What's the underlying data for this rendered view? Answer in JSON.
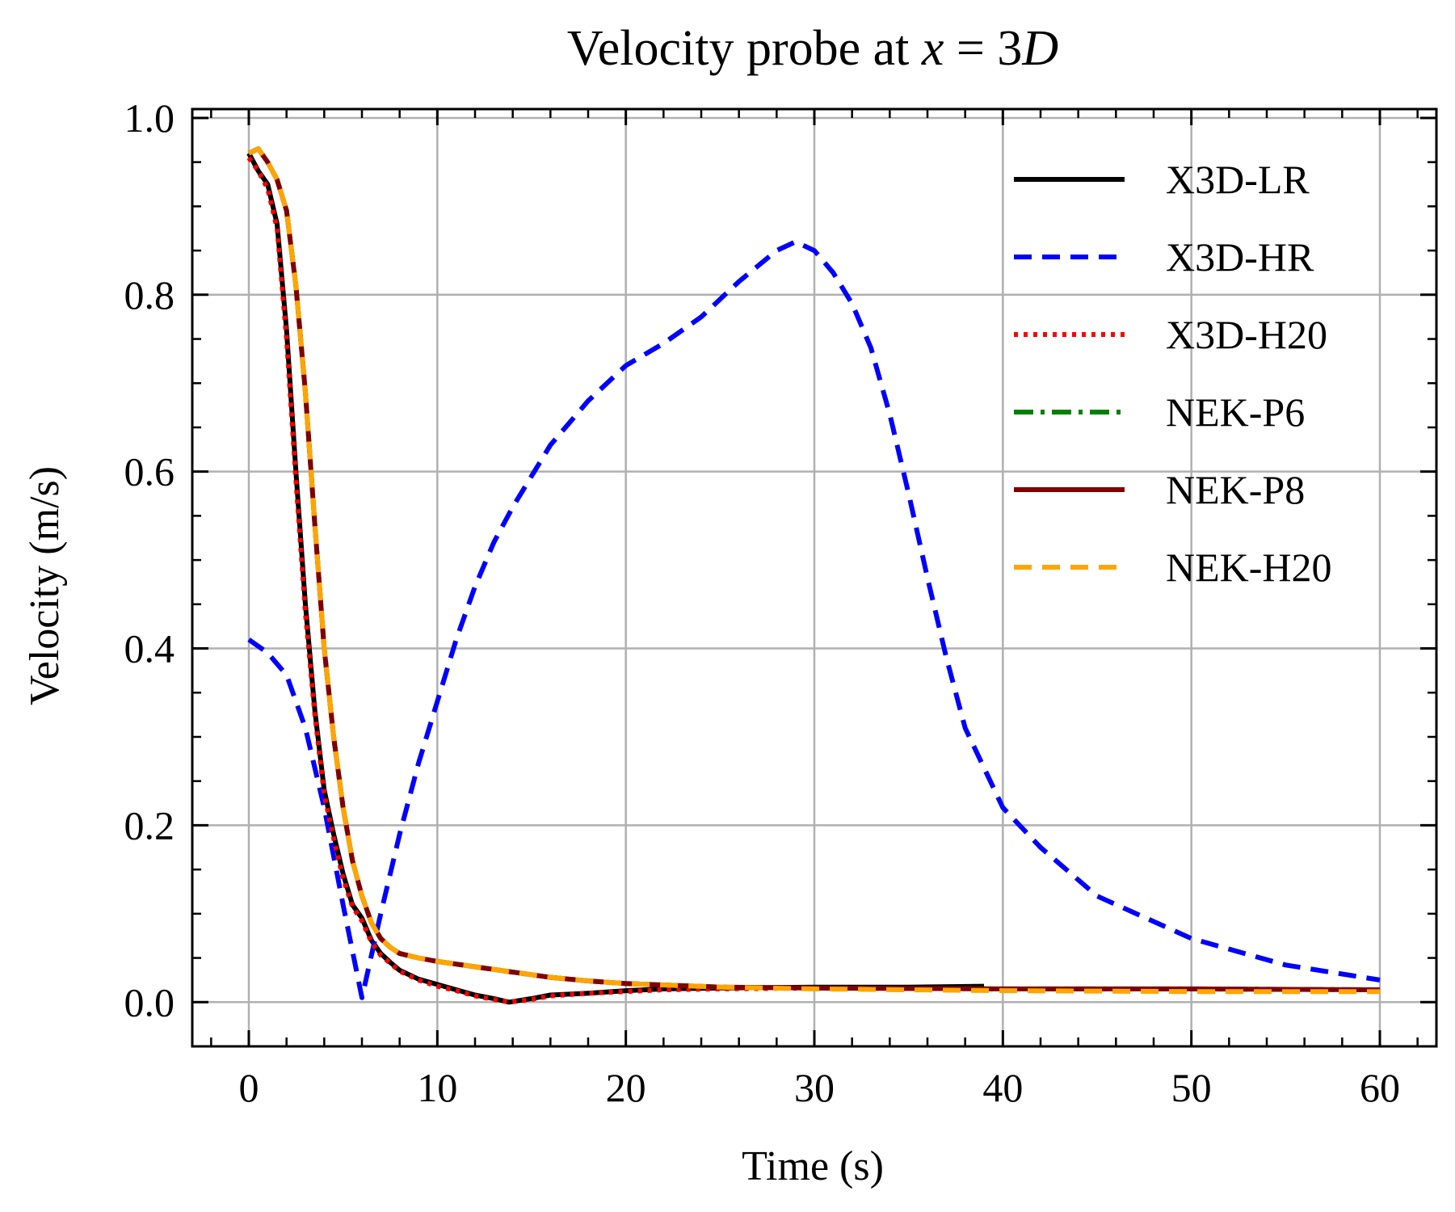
{
  "chart_data": {
    "type": "line",
    "title": "Velocity probe at ",
    "title_math": {
      "var": "x",
      "eq": " = 3",
      "var2": "D"
    },
    "xlabel": "Time (s)",
    "ylabel": "Velocity (m/s)",
    "xlim": [
      -3,
      63
    ],
    "ylim": [
      -0.05,
      1.01
    ],
    "xticks": [
      0,
      10,
      20,
      30,
      40,
      50,
      60
    ],
    "xtick_labels": [
      "0",
      "10",
      "20",
      "30",
      "40",
      "50",
      "60"
    ],
    "yticks": [
      0.0,
      0.2,
      0.4,
      0.6,
      0.8,
      1.0
    ],
    "ytick_labels": [
      "0.0",
      "0.2",
      "0.4",
      "0.6",
      "0.8",
      "1.0"
    ],
    "grid": true,
    "legend_position": "top-right",
    "series": [
      {
        "name": "X3D-LR",
        "color": "#000000",
        "style": "solid",
        "x": [
          0,
          0.5,
          1,
          1.5,
          2,
          2.5,
          3,
          3.5,
          4,
          4.5,
          5,
          5.5,
          6,
          6.5,
          7,
          7.5,
          8,
          9,
          10,
          11,
          12,
          13,
          13.8,
          15,
          16,
          18,
          20,
          22,
          25,
          30,
          35,
          39
        ],
        "y": [
          0.96,
          0.94,
          0.925,
          0.88,
          0.76,
          0.6,
          0.45,
          0.33,
          0.24,
          0.19,
          0.145,
          0.11,
          0.095,
          0.07,
          0.055,
          0.045,
          0.036,
          0.026,
          0.02,
          0.014,
          0.008,
          0.004,
          0.0,
          0.004,
          0.008,
          0.01,
          0.013,
          0.015,
          0.016,
          0.017,
          0.017,
          0.018
        ]
      },
      {
        "name": "X3D-HR",
        "color": "#0000ff",
        "style": "dashed",
        "x": [
          0,
          1,
          2,
          3,
          4,
          5,
          6,
          7,
          8,
          9,
          10,
          11,
          12,
          13,
          14,
          16,
          18,
          20,
          22,
          24,
          26,
          28,
          29,
          30,
          31,
          32,
          33,
          34,
          35,
          36,
          37,
          38,
          40,
          42,
          45,
          50,
          55,
          60
        ],
        "y": [
          0.41,
          0.395,
          0.37,
          0.31,
          0.22,
          0.11,
          0.005,
          0.1,
          0.19,
          0.27,
          0.34,
          0.41,
          0.47,
          0.52,
          0.56,
          0.63,
          0.68,
          0.72,
          0.745,
          0.775,
          0.815,
          0.85,
          0.86,
          0.85,
          0.825,
          0.79,
          0.74,
          0.665,
          0.575,
          0.48,
          0.39,
          0.31,
          0.22,
          0.175,
          0.12,
          0.072,
          0.042,
          0.025
        ]
      },
      {
        "name": "X3D-H20",
        "color": "#ff0000",
        "style": "dotted",
        "x": [
          0,
          0.5,
          1,
          1.5,
          2,
          2.5,
          3,
          3.5,
          4,
          4.5,
          5,
          5.5,
          6,
          6.5,
          7,
          7.5,
          8,
          9,
          10,
          11,
          12,
          13,
          13.8,
          15,
          16,
          18,
          20,
          22,
          25,
          30
        ],
        "y": [
          0.955,
          0.94,
          0.92,
          0.875,
          0.75,
          0.59,
          0.44,
          0.325,
          0.235,
          0.185,
          0.14,
          0.108,
          0.092,
          0.068,
          0.053,
          0.044,
          0.035,
          0.025,
          0.018,
          0.013,
          0.007,
          0.003,
          0.0,
          0.003,
          0.007,
          0.01,
          0.012,
          0.014,
          0.015,
          0.016
        ]
      },
      {
        "name": "NEK-P6",
        "color": "#008000",
        "style": "dashdot",
        "x": [
          0,
          0.5,
          1,
          1.5,
          2,
          2.5,
          3,
          3.5,
          4,
          4.5,
          5,
          5.5,
          6,
          6.5,
          7,
          7.5,
          8,
          9,
          10,
          12,
          14,
          16,
          18,
          20,
          25,
          30,
          40,
          50,
          60
        ],
        "y": [
          0.96,
          0.965,
          0.95,
          0.93,
          0.895,
          0.81,
          0.69,
          0.54,
          0.4,
          0.3,
          0.22,
          0.16,
          0.12,
          0.09,
          0.072,
          0.062,
          0.055,
          0.05,
          0.046,
          0.04,
          0.034,
          0.028,
          0.024,
          0.021,
          0.017,
          0.016,
          0.015,
          0.015,
          0.014
        ]
      },
      {
        "name": "NEK-P8",
        "color": "#800000",
        "style": "solid",
        "x": [
          0,
          0.5,
          1,
          1.5,
          2,
          2.5,
          3,
          3.5,
          4,
          4.5,
          5,
          5.5,
          6,
          6.5,
          7,
          7.5,
          8,
          9,
          10,
          12,
          14,
          16,
          18,
          20,
          25,
          30,
          40,
          50,
          60
        ],
        "y": [
          0.96,
          0.965,
          0.95,
          0.93,
          0.895,
          0.81,
          0.69,
          0.54,
          0.4,
          0.3,
          0.22,
          0.16,
          0.12,
          0.09,
          0.072,
          0.062,
          0.055,
          0.05,
          0.046,
          0.04,
          0.034,
          0.028,
          0.024,
          0.021,
          0.017,
          0.016,
          0.015,
          0.015,
          0.014
        ]
      },
      {
        "name": "NEK-H20",
        "color": "#ffa500",
        "style": "dashed",
        "x": [
          0,
          0.5,
          1,
          1.5,
          2,
          2.5,
          3,
          3.5,
          4,
          4.5,
          5,
          5.5,
          6,
          6.5,
          7,
          7.5,
          8,
          9,
          10,
          12,
          14,
          16,
          18,
          20,
          25,
          30,
          40,
          50,
          60
        ],
        "y": [
          0.96,
          0.965,
          0.95,
          0.93,
          0.895,
          0.81,
          0.69,
          0.54,
          0.4,
          0.3,
          0.22,
          0.16,
          0.12,
          0.09,
          0.072,
          0.062,
          0.055,
          0.05,
          0.046,
          0.04,
          0.034,
          0.028,
          0.024,
          0.021,
          0.017,
          0.015,
          0.013,
          0.012,
          0.012
        ]
      }
    ]
  }
}
